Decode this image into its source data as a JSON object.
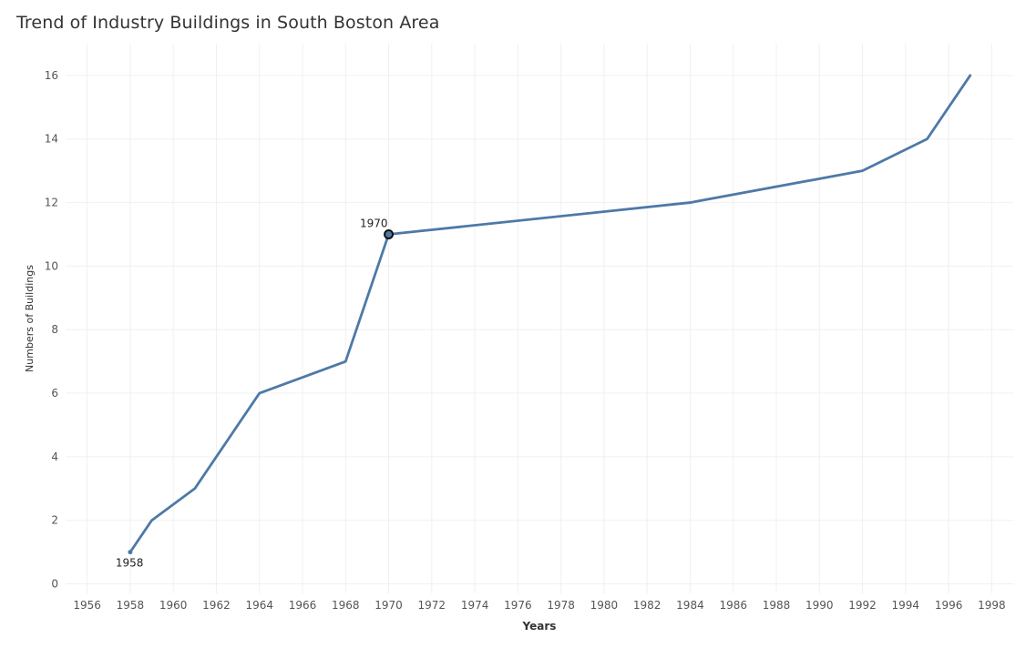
{
  "chart_data": {
    "type": "line",
    "title": "Trend of Industry Buildings in South Boston Area",
    "xlabel": "Years",
    "ylabel": "Numbers of Buildings",
    "xlim": [
      1955,
      1999
    ],
    "ylim": [
      -0.3,
      17
    ],
    "x_ticks": [
      1956,
      1958,
      1960,
      1962,
      1964,
      1966,
      1968,
      1970,
      1972,
      1974,
      1976,
      1978,
      1980,
      1982,
      1984,
      1986,
      1988,
      1990,
      1992,
      1994,
      1996,
      1998
    ],
    "y_ticks": [
      0,
      2,
      4,
      6,
      8,
      10,
      12,
      14,
      16
    ],
    "grid": true,
    "series": [
      {
        "color": "#4e79a7",
        "x": [
          1958,
          1959,
          1961,
          1964,
          1968,
          1970,
          1984,
          1992,
          1995,
          1997
        ],
        "y": [
          1,
          2,
          3,
          6,
          7,
          11,
          12,
          13,
          14,
          16
        ]
      }
    ],
    "annotations": [
      {
        "text": "1958",
        "x": 1958,
        "y": 1,
        "marker": false,
        "anchor": "below"
      },
      {
        "text": "1970",
        "x": 1970,
        "y": 11,
        "marker": true,
        "anchor": "above-left"
      }
    ]
  }
}
